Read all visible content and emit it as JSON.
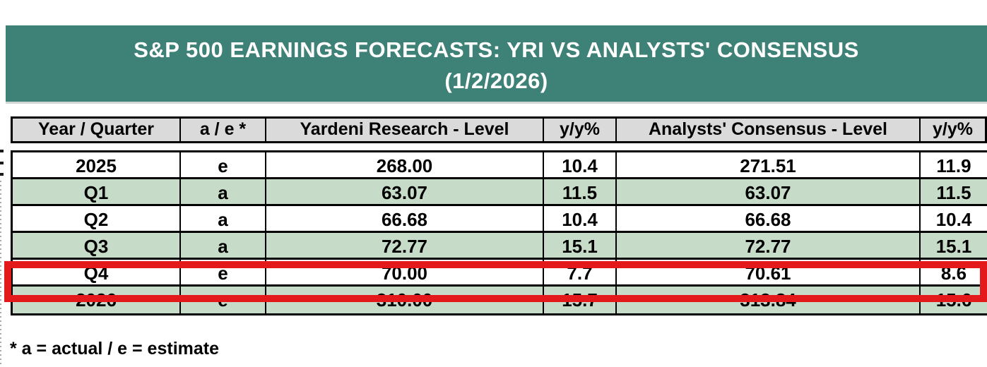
{
  "chart_data": {
    "type": "table",
    "title": "S&P 500 EARNINGS FORECASTS: YRI VS ANALYSTS' CONSENSUS",
    "subtitle": "(1/2/2026)",
    "columns": [
      "Year / Quarter",
      "a / e *",
      "Yardeni Research - Level",
      "y/y%",
      "Analysts' Consensus - Level",
      "y/y%"
    ],
    "rows": [
      [
        "2025",
        "e",
        "268.00",
        "10.4",
        "271.51",
        "11.9"
      ],
      [
        "Q1",
        "a",
        "63.07",
        "11.5",
        "63.07",
        "11.5"
      ],
      [
        "Q2",
        "a",
        "66.68",
        "10.4",
        "66.68",
        "10.4"
      ],
      [
        "Q3",
        "a",
        "72.77",
        "15.1",
        "72.77",
        "15.1"
      ],
      [
        "Q4",
        "e",
        "70.00",
        "7.7",
        "70.61",
        "8.6"
      ],
      [
        "2026",
        "e",
        "310.00",
        "15.7",
        "313.84",
        "15.6"
      ]
    ],
    "shaded_rows": [
      1,
      3,
      5
    ],
    "highlighted_row": 4,
    "footnote": "* a = actual / e = estimate"
  },
  "colors": {
    "banner_bg": "#3E8277",
    "banner_text": "#FFFFFF",
    "header_bg": "#DADADA",
    "shaded_row_bg": "#C7DCC8",
    "plain_row_bg": "#FFFFFF",
    "highlight_border": "#E3191B",
    "table_border": "#000000",
    "text": "#000000"
  }
}
